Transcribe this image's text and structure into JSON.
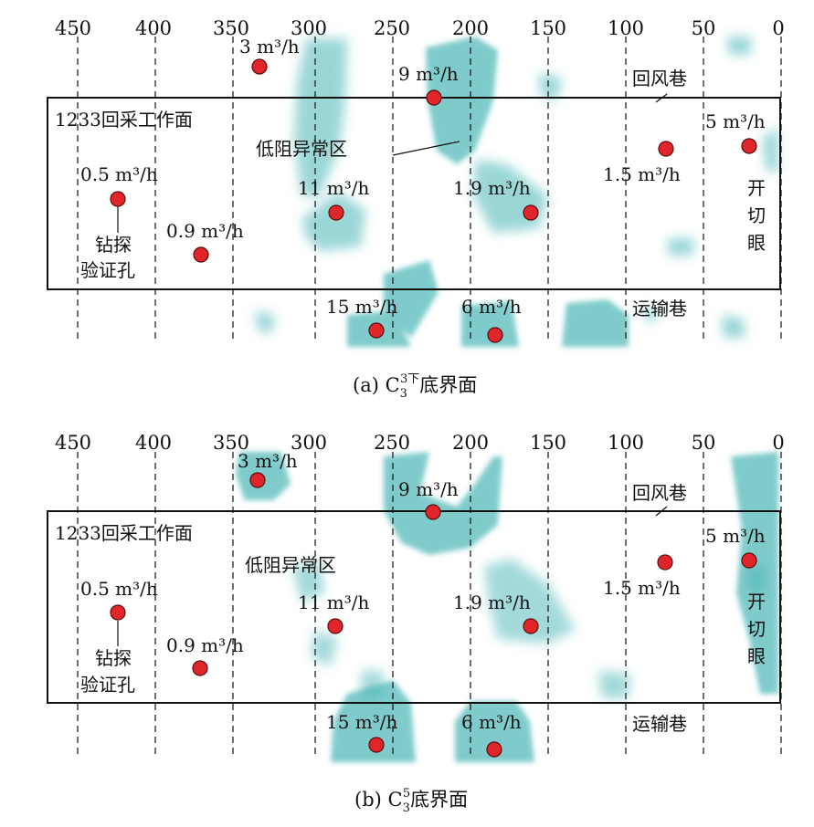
{
  "colors": {
    "anomaly": "#49b5b5",
    "borehole": "#e0262b",
    "line": "#111111"
  },
  "panels": [
    {
      "id": "a",
      "ticks": [
        "450",
        "400",
        "350",
        "300",
        "250",
        "200",
        "150",
        "100",
        "50",
        "0"
      ],
      "labels": {
        "face": "1233回采工作面",
        "return_road": "回风巷",
        "haul_road": "运输巷",
        "anomaly": "低阻异常区",
        "drill_1": "钻探",
        "drill_2": "验证孔",
        "cut_1": "开",
        "cut_2": "切",
        "cut_3": "眼"
      },
      "caption": {
        "prefix": "(a)  C",
        "sub": "3",
        "sup": "3下",
        "suffix": "底界面"
      },
      "boreholes": [
        {
          "pos": 335,
          "flow": "3 m³/h"
        },
        {
          "pos": 225,
          "flow": "9 m³/h"
        },
        {
          "pos": 20,
          "flow": "5 m³/h"
        },
        {
          "pos": 75,
          "flow": "1.5 m³/h"
        },
        {
          "pos": 423,
          "flow": "0.5 m³/h"
        },
        {
          "pos": 288,
          "flow": "11 m³/h"
        },
        {
          "pos": 159,
          "flow": "1.9 m³/h"
        },
        {
          "pos": 370,
          "flow": "0.9 m³/h"
        },
        {
          "pos": 263,
          "flow": "15 m³/h"
        },
        {
          "pos": 184,
          "flow": "6 m³/h"
        }
      ]
    },
    {
      "id": "b",
      "ticks": [
        "450",
        "400",
        "350",
        "300",
        "250",
        "200",
        "150",
        "100",
        "50",
        "0"
      ],
      "labels": {
        "face": "1233回采工作面",
        "return_road": "回风巷",
        "haul_road": "运输巷",
        "anomaly": "低阻异常区",
        "drill_1": "钻探",
        "drill_2": "验证孔",
        "cut_1": "开",
        "cut_2": "切",
        "cut_3": "眼"
      },
      "caption": {
        "prefix": "(b)  C",
        "sub": "3",
        "sup": "5",
        "suffix": "底界面"
      },
      "boreholes": [
        {
          "pos": 335,
          "flow": "3 m³/h"
        },
        {
          "pos": 225,
          "flow": "9 m³/h"
        },
        {
          "pos": 20,
          "flow": "5 m³/h"
        },
        {
          "pos": 75,
          "flow": "1.5 m³/h"
        },
        {
          "pos": 423,
          "flow": "0.5 m³/h"
        },
        {
          "pos": 288,
          "flow": "11 m³/h"
        },
        {
          "pos": 159,
          "flow": "1.9 m³/h"
        },
        {
          "pos": 370,
          "flow": "0.9 m³/h"
        },
        {
          "pos": 263,
          "flow": "15 m³/h"
        },
        {
          "pos": 184,
          "flow": "6 m³/h"
        }
      ]
    }
  ]
}
